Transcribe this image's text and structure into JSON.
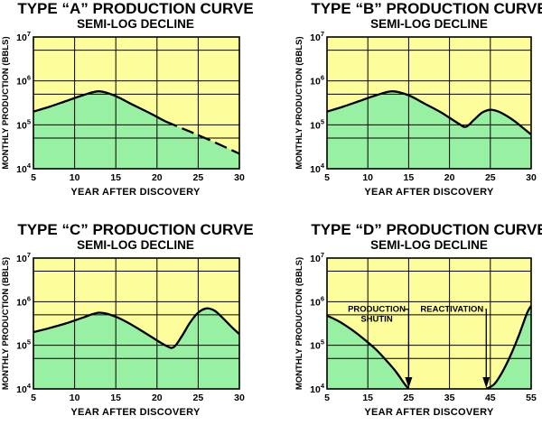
{
  "colors": {
    "upper_fill": "#fdfd9c",
    "lower_fill": "#98f0a2",
    "curve": "#000000",
    "grid": "#000000"
  },
  "chart_data": [
    {
      "type": "area",
      "title": "TYPE “A” PRODUCTION CURVE",
      "subtitle": "SEMI-LOG DECLINE",
      "xlabel": "YEAR AFTER DISCOVERY",
      "ylabel": "MONTHLY PRODUCTION (BBLS)",
      "xlim": [
        5,
        30
      ],
      "xticks": [
        "5",
        "10",
        "15",
        "20",
        "25",
        "30"
      ],
      "ylim": [
        10000,
        10000000
      ],
      "yscale": "log",
      "yticks": [
        {
          "base": "10",
          "exp": "4"
        },
        {
          "base": "10",
          "exp": "5"
        },
        {
          "base": "10",
          "exp": "6"
        },
        {
          "base": "10",
          "exp": "7"
        }
      ],
      "grid": true,
      "series": [
        {
          "style": "solid",
          "x": [
            5,
            7,
            9,
            11,
            13,
            15,
            17,
            19,
            21
          ],
          "y": [
            200000,
            260000,
            350000,
            470000,
            580000,
            450000,
            290000,
            190000,
            120000
          ]
        },
        {
          "style": "dashed",
          "x": [
            21,
            24,
            27,
            30
          ],
          "y": [
            120000,
            70000,
            40000,
            22000
          ]
        }
      ],
      "annotations": []
    },
    {
      "type": "area",
      "title": "TYPE “B” PRODUCTION CURVE",
      "subtitle": "SEMI-LOG DECLINE",
      "xlabel": "YEAR AFTER DISCOVERY",
      "ylabel": "MONTHLY PRODUCTION (BBLS)",
      "xlim": [
        5,
        30
      ],
      "xticks": [
        "5",
        "10",
        "15",
        "20",
        "25",
        "30"
      ],
      "ylim": [
        10000,
        10000000
      ],
      "yscale": "log",
      "yticks": [
        {
          "base": "10",
          "exp": "4"
        },
        {
          "base": "10",
          "exp": "5"
        },
        {
          "base": "10",
          "exp": "6"
        },
        {
          "base": "10",
          "exp": "7"
        }
      ],
      "grid": true,
      "series": [
        {
          "style": "solid",
          "x": [
            5,
            7,
            9,
            11,
            13,
            15,
            17,
            19,
            21,
            22,
            23,
            24,
            25,
            26,
            27,
            28,
            29,
            30
          ],
          "y": [
            200000,
            260000,
            350000,
            470000,
            580000,
            470000,
            300000,
            190000,
            110000,
            90000,
            130000,
            190000,
            220000,
            200000,
            160000,
            120000,
            85000,
            60000
          ]
        }
      ],
      "annotations": []
    },
    {
      "type": "area",
      "title": "TYPE “C” PRODUCTION CURVE",
      "subtitle": "SEMI-LOG DECLINE",
      "xlabel": "YEAR AFTER DISCOVERY",
      "ylabel": "MONTHLY PRODUCTION (BBLS)",
      "xlim": [
        5,
        30
      ],
      "xticks": [
        "5",
        "10",
        "15",
        "20",
        "25",
        "30"
      ],
      "ylim": [
        10000,
        10000000
      ],
      "yscale": "log",
      "yticks": [
        {
          "base": "10",
          "exp": "4"
        },
        {
          "base": "10",
          "exp": "5"
        },
        {
          "base": "10",
          "exp": "6"
        },
        {
          "base": "10",
          "exp": "7"
        }
      ],
      "grid": true,
      "series": [
        {
          "style": "solid",
          "x": [
            5,
            7,
            9,
            11,
            13,
            15,
            17,
            19,
            21,
            22,
            23,
            24,
            25,
            26,
            27,
            28,
            29,
            30
          ],
          "y": [
            200000,
            250000,
            320000,
            430000,
            560000,
            450000,
            290000,
            170000,
            100000,
            90000,
            160000,
            330000,
            560000,
            700000,
            620000,
            420000,
            270000,
            180000
          ]
        }
      ],
      "annotations": []
    },
    {
      "type": "area",
      "title": "TYPE “D” PRODUCTION CURVE",
      "subtitle": "SEMI-LOG DECLINE",
      "xlabel": "YEAR AFTER DISCOVERY",
      "ylabel": "MONTHLY PRODUCTION (BBLS)",
      "xlim": [
        5,
        55
      ],
      "xticks": [
        "5",
        "15",
        "25",
        "35",
        "45",
        "55"
      ],
      "ylim": [
        10000,
        10000000
      ],
      "yscale": "log",
      "yticks": [
        {
          "base": "10",
          "exp": "4"
        },
        {
          "base": "10",
          "exp": "5"
        },
        {
          "base": "10",
          "exp": "6"
        },
        {
          "base": "10",
          "exp": "7"
        }
      ],
      "grid": true,
      "series": [
        {
          "style": "solid",
          "x": [
            5,
            8,
            11,
            14,
            17,
            20,
            22,
            24,
            25
          ],
          "y": [
            480000,
            350000,
            230000,
            140000,
            80000,
            40000,
            24000,
            13000,
            10000
          ]
        },
        {
          "style": "solid",
          "x": [
            44,
            46,
            48,
            50,
            52,
            54,
            55
          ],
          "y": [
            10000,
            13000,
            25000,
            60000,
            170000,
            550000,
            800000
          ]
        }
      ],
      "annotations": [
        {
          "lines": [
            "PRODUCTION",
            "SHUTIN"
          ],
          "arrow_x": 25
        },
        {
          "lines": [
            "REACTIVATION"
          ],
          "arrow_x": 44
        }
      ]
    }
  ]
}
